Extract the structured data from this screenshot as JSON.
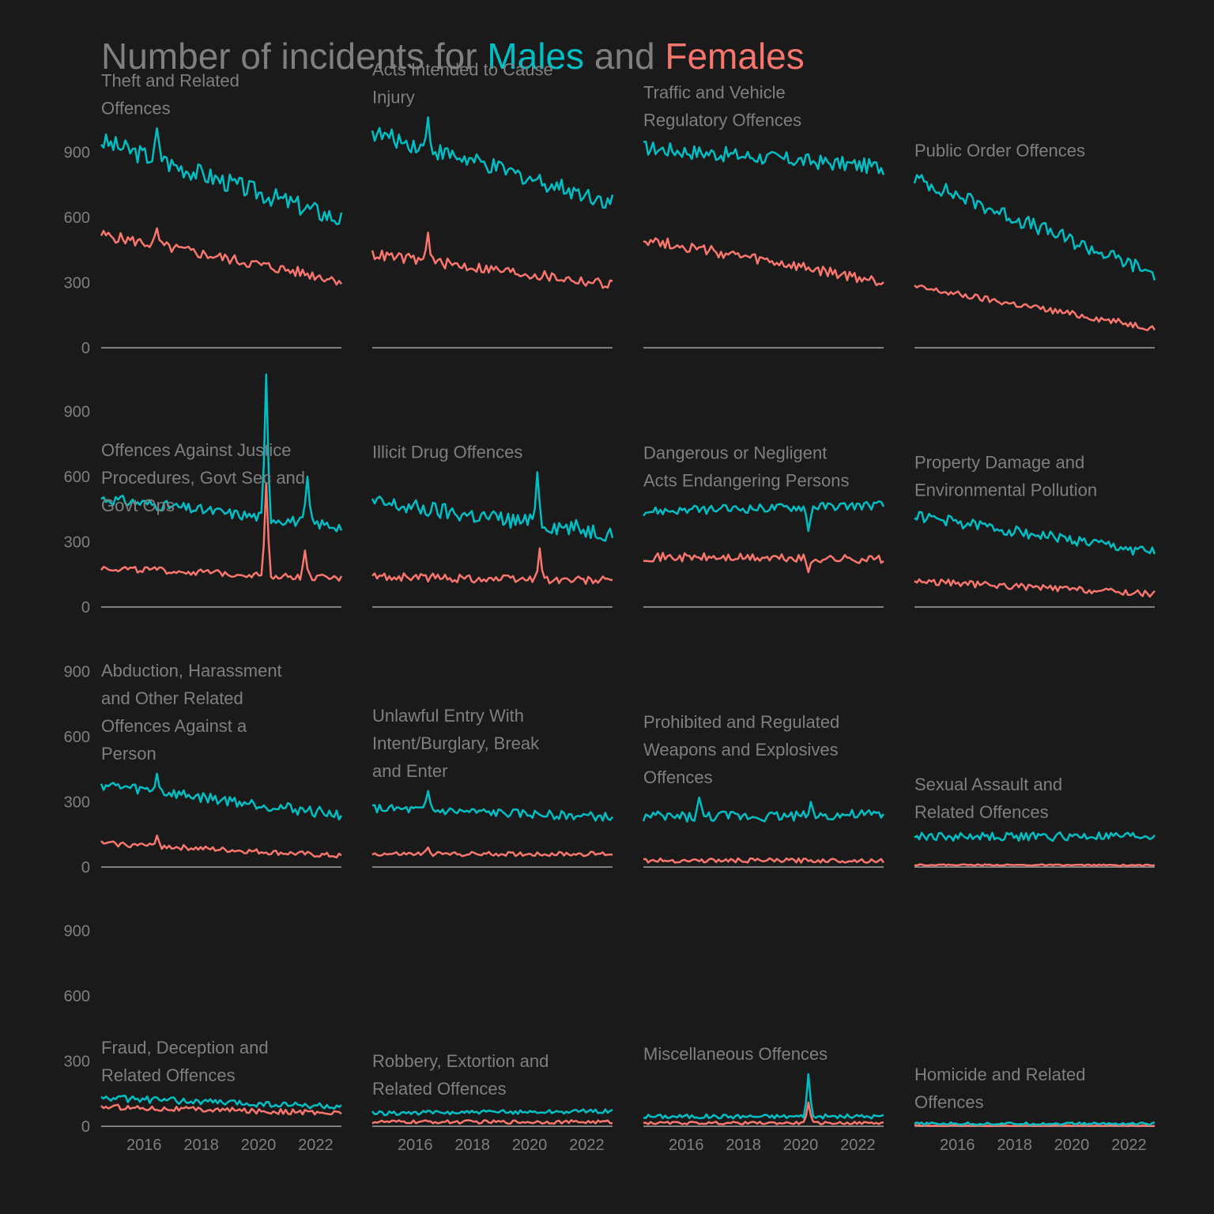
{
  "chart_data": {
    "type": "line",
    "title_parts": [
      {
        "text": "Number of incidents for ",
        "role": "plain"
      },
      {
        "text": "Males",
        "role": "male"
      },
      {
        "text": " and ",
        "role": "plain"
      },
      {
        "text": "Females",
        "role": "female"
      }
    ],
    "colors": {
      "male": "#00bfc4",
      "female": "#f8766d",
      "text": "#7f7f7f",
      "axis": "#7f7f7f",
      "background": "#1a1a1a"
    },
    "x_range": [
      2014.5,
      2022.9
    ],
    "x_ticks": [
      2016,
      2018,
      2020,
      2022
    ],
    "y_range": [
      0,
      1100
    ],
    "y_ticks": [
      0,
      300,
      600,
      900
    ],
    "grid": false,
    "legend": "in-title",
    "series_names": [
      "Males",
      "Females"
    ],
    "panels": [
      {
        "title": [
          "Theft and Related",
          "Offences"
        ],
        "male": {
          "start": 950,
          "end": 590,
          "noise": 45,
          "spikes": [
            [
              0.23,
              1010
            ],
            [
              0.26,
              880
            ]
          ]
        },
        "female": {
          "start": 520,
          "end": 310,
          "noise": 25,
          "spikes": [
            [
              0.23,
              550
            ]
          ]
        }
      },
      {
        "title": [
          "Acts Intended to Cause",
          "Injury"
        ],
        "male": {
          "start": 990,
          "end": 670,
          "noise": 40,
          "spikes": [
            [
              0.23,
              1060
            ]
          ]
        },
        "female": {
          "start": 430,
          "end": 290,
          "noise": 25,
          "spikes": [
            [
              0.23,
              530
            ]
          ]
        }
      },
      {
        "title": [
          "Traffic and Vehicle",
          "Regulatory Offences"
        ],
        "male": {
          "start": 920,
          "end": 830,
          "noise": 35,
          "spikes": []
        },
        "female": {
          "start": 500,
          "end": 300,
          "noise": 25,
          "spikes": []
        }
      },
      {
        "title": [
          "Public Order Offences"
        ],
        "male": {
          "start": 780,
          "end": 340,
          "noise": 35,
          "spikes": []
        },
        "female": {
          "start": 280,
          "end": 90,
          "noise": 15,
          "spikes": []
        }
      },
      {
        "title": [
          "Offences Against Justice",
          "Procedures, Govt Sec and",
          "Govt Ops"
        ],
        "male": {
          "start": 500,
          "end": 370,
          "noise": 25,
          "spikes": [
            [
              0.69,
              1070
            ],
            [
              0.86,
              600
            ]
          ]
        },
        "female": {
          "start": 180,
          "end": 130,
          "noise": 15,
          "spikes": [
            [
              0.69,
              570
            ],
            [
              0.85,
              260
            ]
          ]
        }
      },
      {
        "title": [
          "Illicit Drug Offences"
        ],
        "male": {
          "start": 480,
          "end": 340,
          "noise": 40,
          "spikes": [
            [
              0.69,
              620
            ]
          ]
        },
        "female": {
          "start": 140,
          "end": 120,
          "noise": 20,
          "spikes": [
            [
              0.7,
              270
            ]
          ]
        }
      },
      {
        "title": [
          "Dangerous or Negligent",
          "Acts Endangering Persons"
        ],
        "male": {
          "start": 440,
          "end": 470,
          "noise": 20,
          "spikes": [
            [
              0.69,
              350
            ]
          ]
        },
        "female": {
          "start": 230,
          "end": 220,
          "noise": 20,
          "spikes": [
            [
              0.69,
              160
            ]
          ]
        }
      },
      {
        "title": [
          "Property Damage and",
          "Environmental Pollution"
        ],
        "male": {
          "start": 420,
          "end": 250,
          "noise": 25,
          "spikes": []
        },
        "female": {
          "start": 120,
          "end": 60,
          "noise": 15,
          "spikes": []
        }
      },
      {
        "title": [
          "Abduction, Harassment",
          "and Other Related",
          "Offences Against a",
          "Person"
        ],
        "male": {
          "start": 380,
          "end": 240,
          "noise": 25,
          "spikes": [
            [
              0.23,
              430
            ]
          ]
        },
        "female": {
          "start": 110,
          "end": 50,
          "noise": 12,
          "spikes": [
            [
              0.23,
              145
            ]
          ]
        }
      },
      {
        "title": [
          "Unlawful Entry With",
          "Intent/Burglary, Break",
          "and Enter"
        ],
        "male": {
          "start": 270,
          "end": 230,
          "noise": 20,
          "spikes": [
            [
              0.23,
              350
            ]
          ]
        },
        "female": {
          "start": 60,
          "end": 60,
          "noise": 10,
          "spikes": [
            [
              0.23,
              90
            ]
          ]
        }
      },
      {
        "title": [
          "Prohibited and Regulated",
          "Weapons and Explosives",
          "Offences"
        ],
        "male": {
          "start": 230,
          "end": 240,
          "noise": 25,
          "spikes": [
            [
              0.23,
              320
            ],
            [
              0.7,
              300
            ]
          ]
        },
        "female": {
          "start": 30,
          "end": 30,
          "noise": 10,
          "spikes": []
        }
      },
      {
        "title": [
          "Sexual Assault and",
          "Related Offences"
        ],
        "male": {
          "start": 140,
          "end": 140,
          "noise": 20,
          "spikes": []
        },
        "female": {
          "start": 10,
          "end": 8,
          "noise": 3,
          "spikes": []
        }
      },
      {
        "title": [
          "Fraud, Deception and",
          "Related Offences"
        ],
        "male": {
          "start": 130,
          "end": 90,
          "noise": 15,
          "spikes": []
        },
        "female": {
          "start": 90,
          "end": 60,
          "noise": 12,
          "spikes": []
        }
      },
      {
        "title": [
          "Robbery, Extortion and",
          "Related Offences"
        ],
        "male": {
          "start": 60,
          "end": 70,
          "noise": 10,
          "spikes": []
        },
        "female": {
          "start": 20,
          "end": 20,
          "noise": 8,
          "spikes": []
        }
      },
      {
        "title": [
          "Miscellaneous Offences"
        ],
        "male": {
          "start": 45,
          "end": 45,
          "noise": 10,
          "spikes": [
            [
              0.69,
              240
            ]
          ]
        },
        "female": {
          "start": 15,
          "end": 15,
          "noise": 6,
          "spikes": [
            [
              0.69,
              110
            ]
          ]
        }
      },
      {
        "title": [
          "Homicide and Related",
          "Offences"
        ],
        "male": {
          "start": 12,
          "end": 12,
          "noise": 6,
          "spikes": []
        },
        "female": {
          "start": 3,
          "end": 3,
          "noise": 2,
          "spikes": []
        }
      }
    ]
  }
}
